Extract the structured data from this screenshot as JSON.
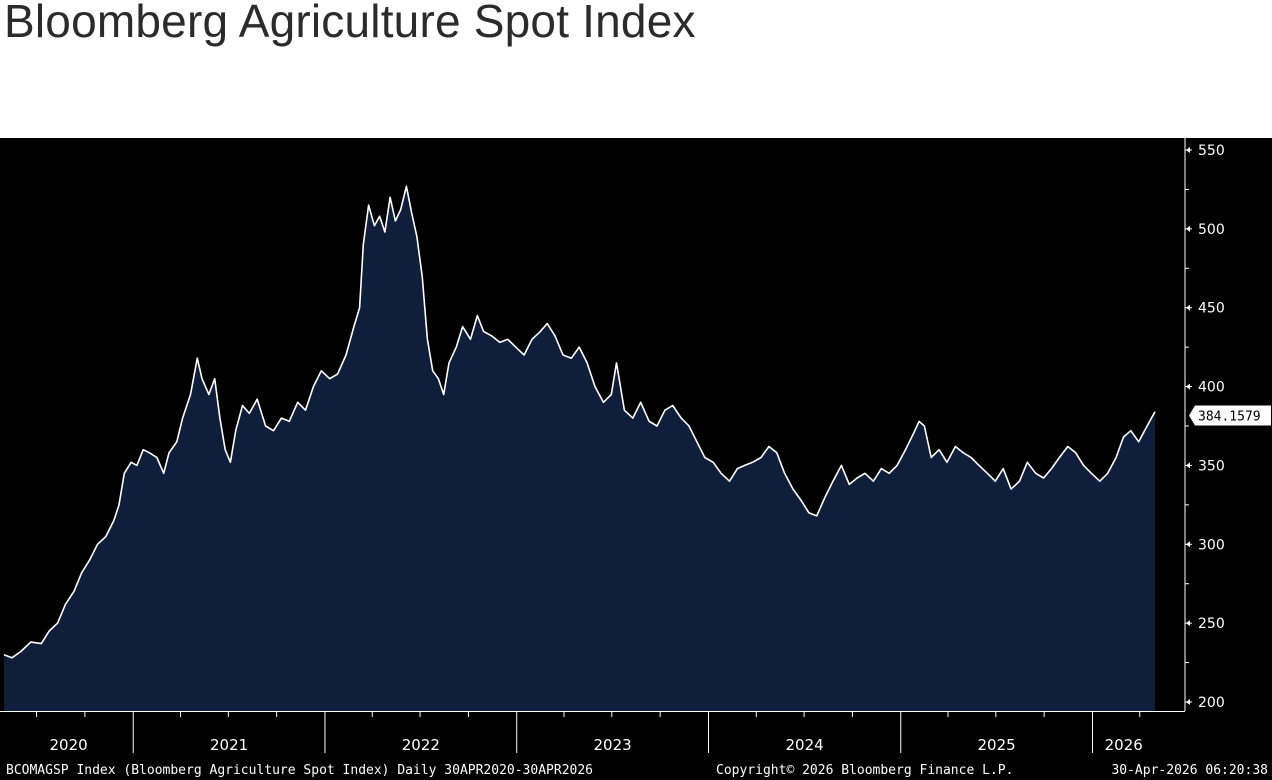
{
  "header": {
    "title": "Bloomberg Agriculture Spot Index"
  },
  "footer": {
    "description": "BCOMAGSP Index (Bloomberg Agriculture Spot Index) Daily 30APR2020-30APR2026",
    "copyright": "Copyright© 2026 Bloomberg Finance L.P.",
    "timestamp": "30-Apr-2026 06:20:38"
  },
  "colors": {
    "background": "#000000",
    "area_fill": "#0f1e3b",
    "line": "#ffffff",
    "axis": "#ffffff",
    "label_bg": "#ffffff",
    "label_text": "#000000"
  },
  "chart_data": {
    "type": "area",
    "title": "Bloomberg Agriculture Spot Index",
    "xlabel": "",
    "ylabel": "",
    "x_range": [
      "2020-04-30",
      "2026-04-30"
    ],
    "ylim": [
      195,
      555
    ],
    "y_ticks": [
      200,
      250,
      300,
      350,
      400,
      450,
      500,
      550
    ],
    "x_tick_labels": [
      "2020",
      "2021",
      "2022",
      "2023",
      "2024",
      "2025",
      "2026"
    ],
    "grid": false,
    "last_value_label": "384.1579",
    "series": [
      {
        "name": "BCOMAGSP Index",
        "points": [
          [
            "2020-04-30",
            230
          ],
          [
            "2020-05-15",
            228
          ],
          [
            "2020-06-01",
            232
          ],
          [
            "2020-06-20",
            238
          ],
          [
            "2020-07-10",
            237
          ],
          [
            "2020-07-25",
            245
          ],
          [
            "2020-08-10",
            250
          ],
          [
            "2020-08-25",
            262
          ],
          [
            "2020-09-10",
            270
          ],
          [
            "2020-09-25",
            282
          ],
          [
            "2020-10-10",
            290
          ],
          [
            "2020-10-25",
            300
          ],
          [
            "2020-11-10",
            305
          ],
          [
            "2020-11-25",
            315
          ],
          [
            "2020-12-05",
            325
          ],
          [
            "2020-12-15",
            345
          ],
          [
            "2020-12-28",
            352
          ],
          [
            "2021-01-08",
            350
          ],
          [
            "2021-01-20",
            360
          ],
          [
            "2021-02-01",
            358
          ],
          [
            "2021-02-15",
            355
          ],
          [
            "2021-02-28",
            345
          ],
          [
            "2021-03-10",
            358
          ],
          [
            "2021-03-25",
            365
          ],
          [
            "2021-04-05",
            380
          ],
          [
            "2021-04-20",
            395
          ],
          [
            "2021-05-03",
            418
          ],
          [
            "2021-05-12",
            405
          ],
          [
            "2021-05-25",
            395
          ],
          [
            "2021-06-05",
            405
          ],
          [
            "2021-06-15",
            380
          ],
          [
            "2021-06-25",
            360
          ],
          [
            "2021-07-05",
            352
          ],
          [
            "2021-07-15",
            372
          ],
          [
            "2021-07-28",
            388
          ],
          [
            "2021-08-10",
            383
          ],
          [
            "2021-08-25",
            392
          ],
          [
            "2021-09-10",
            375
          ],
          [
            "2021-09-25",
            372
          ],
          [
            "2021-10-10",
            380
          ],
          [
            "2021-10-25",
            378
          ],
          [
            "2021-11-10",
            390
          ],
          [
            "2021-11-25",
            385
          ],
          [
            "2021-12-10",
            400
          ],
          [
            "2021-12-25",
            410
          ],
          [
            "2022-01-10",
            405
          ],
          [
            "2022-01-25",
            408
          ],
          [
            "2022-02-10",
            420
          ],
          [
            "2022-02-25",
            438
          ],
          [
            "2022-03-08",
            450
          ],
          [
            "2022-03-15",
            490
          ],
          [
            "2022-03-25",
            515
          ],
          [
            "2022-04-05",
            502
          ],
          [
            "2022-04-15",
            508
          ],
          [
            "2022-04-25",
            498
          ],
          [
            "2022-05-05",
            520
          ],
          [
            "2022-05-15",
            505
          ],
          [
            "2022-05-25",
            512
          ],
          [
            "2022-06-05",
            527
          ],
          [
            "2022-06-15",
            510
          ],
          [
            "2022-06-25",
            495
          ],
          [
            "2022-07-05",
            470
          ],
          [
            "2022-07-15",
            430
          ],
          [
            "2022-07-25",
            410
          ],
          [
            "2022-08-05",
            405
          ],
          [
            "2022-08-15",
            395
          ],
          [
            "2022-08-25",
            415
          ],
          [
            "2022-09-08",
            425
          ],
          [
            "2022-09-20",
            438
          ],
          [
            "2022-10-05",
            430
          ],
          [
            "2022-10-18",
            445
          ],
          [
            "2022-10-30",
            435
          ],
          [
            "2022-11-15",
            432
          ],
          [
            "2022-11-30",
            428
          ],
          [
            "2022-12-15",
            430
          ],
          [
            "2022-12-30",
            425
          ],
          [
            "2023-01-15",
            420
          ],
          [
            "2023-01-30",
            430
          ],
          [
            "2023-02-15",
            435
          ],
          [
            "2023-02-28",
            440
          ],
          [
            "2023-03-15",
            432
          ],
          [
            "2023-03-30",
            420
          ],
          [
            "2023-04-15",
            418
          ],
          [
            "2023-04-30",
            425
          ],
          [
            "2023-05-15",
            415
          ],
          [
            "2023-05-30",
            400
          ],
          [
            "2023-06-15",
            390
          ],
          [
            "2023-06-30",
            395
          ],
          [
            "2023-07-10",
            415
          ],
          [
            "2023-07-25",
            385
          ],
          [
            "2023-08-10",
            380
          ],
          [
            "2023-08-25",
            390
          ],
          [
            "2023-09-10",
            378
          ],
          [
            "2023-09-25",
            375
          ],
          [
            "2023-10-10",
            385
          ],
          [
            "2023-10-25",
            388
          ],
          [
            "2023-11-10",
            380
          ],
          [
            "2023-11-25",
            375
          ],
          [
            "2023-12-10",
            365
          ],
          [
            "2023-12-25",
            355
          ],
          [
            "2024-01-10",
            352
          ],
          [
            "2024-01-25",
            345
          ],
          [
            "2024-02-10",
            340
          ],
          [
            "2024-02-25",
            348
          ],
          [
            "2024-03-10",
            350
          ],
          [
            "2024-03-25",
            352
          ],
          [
            "2024-04-10",
            355
          ],
          [
            "2024-04-25",
            362
          ],
          [
            "2024-05-10",
            358
          ],
          [
            "2024-05-25",
            345
          ],
          [
            "2024-06-10",
            335
          ],
          [
            "2024-06-25",
            328
          ],
          [
            "2024-07-10",
            320
          ],
          [
            "2024-07-25",
            318
          ],
          [
            "2024-08-10",
            330
          ],
          [
            "2024-08-25",
            340
          ],
          [
            "2024-09-10",
            350
          ],
          [
            "2024-09-25",
            338
          ],
          [
            "2024-10-10",
            342
          ],
          [
            "2024-10-25",
            345
          ],
          [
            "2024-11-10",
            340
          ],
          [
            "2024-11-25",
            348
          ],
          [
            "2024-12-10",
            345
          ],
          [
            "2024-12-25",
            350
          ],
          [
            "2025-01-10",
            360
          ],
          [
            "2025-01-25",
            370
          ],
          [
            "2025-02-05",
            378
          ],
          [
            "2025-02-15",
            375
          ],
          [
            "2025-02-28",
            355
          ],
          [
            "2025-03-15",
            360
          ],
          [
            "2025-03-30",
            352
          ],
          [
            "2025-04-15",
            362
          ],
          [
            "2025-04-30",
            358
          ],
          [
            "2025-05-15",
            355
          ],
          [
            "2025-05-30",
            350
          ],
          [
            "2025-06-15",
            345
          ],
          [
            "2025-06-30",
            340
          ],
          [
            "2025-07-15",
            348
          ],
          [
            "2025-07-30",
            335
          ],
          [
            "2025-08-15",
            340
          ],
          [
            "2025-08-30",
            352
          ],
          [
            "2025-09-15",
            345
          ],
          [
            "2025-09-30",
            342
          ],
          [
            "2025-10-15",
            348
          ],
          [
            "2025-10-30",
            355
          ],
          [
            "2025-11-15",
            362
          ],
          [
            "2025-11-30",
            358
          ],
          [
            "2025-12-15",
            350
          ],
          [
            "2025-12-30",
            345
          ],
          [
            "2026-01-15",
            340
          ],
          [
            "2026-01-30",
            345
          ],
          [
            "2026-02-15",
            355
          ],
          [
            "2026-03-01",
            368
          ],
          [
            "2026-03-15",
            372
          ],
          [
            "2026-03-30",
            365
          ],
          [
            "2026-04-15",
            375
          ],
          [
            "2026-04-30",
            384.1579
          ]
        ]
      }
    ]
  }
}
